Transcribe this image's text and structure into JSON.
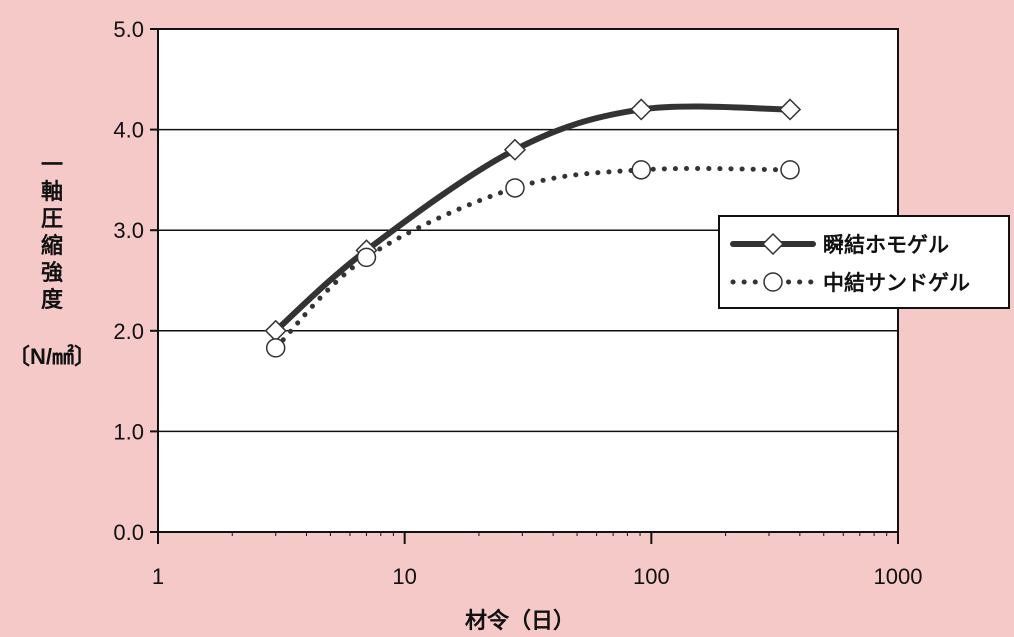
{
  "chart_data": {
    "type": "line",
    "title": "",
    "xlabel": "材令（日）",
    "ylabel_lines": [
      "一",
      "軸",
      "圧",
      "縮",
      "強",
      "度"
    ],
    "ylabel_unit": "〔N/㎟〕",
    "x_scale": "log",
    "xlim": [
      1,
      1000
    ],
    "ylim": [
      0,
      5
    ],
    "x_ticks": [
      1,
      10,
      100,
      1000
    ],
    "x_tick_labels": [
      "1",
      "10",
      "100",
      "1000"
    ],
    "y_ticks": [
      0,
      1,
      2,
      3,
      4,
      5
    ],
    "y_tick_labels": [
      "0.0",
      "1.0",
      "2.0",
      "3.0",
      "4.0",
      "5.0"
    ],
    "grid": "horizontal",
    "legend_position": "right",
    "series": [
      {
        "name": "瞬結ホモゲル",
        "marker": "diamond",
        "line_style": "solid",
        "color": "#333333",
        "x": [
          3,
          7,
          28,
          91,
          365
        ],
        "y": [
          2.0,
          2.8,
          3.8,
          4.2,
          4.2
        ]
      },
      {
        "name": "中結サンドゲル",
        "marker": "circle",
        "line_style": "dotted",
        "color": "#333333",
        "x": [
          3,
          7,
          28,
          91,
          365
        ],
        "y": [
          1.83,
          2.73,
          3.42,
          3.6,
          3.6
        ]
      }
    ]
  }
}
